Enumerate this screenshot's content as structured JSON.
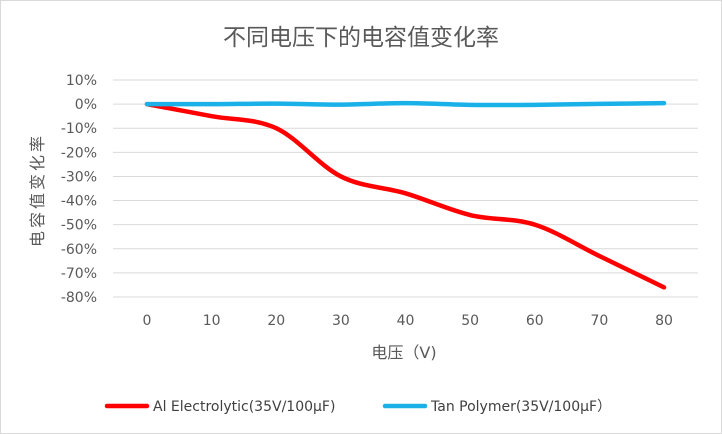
{
  "chart_data": {
    "type": "line",
    "title": "不同电压下的电容值变化率",
    "xlabel": "电压（V)",
    "ylabel": "电容值变化率",
    "x": [
      0,
      10,
      20,
      30,
      40,
      50,
      60,
      70,
      80
    ],
    "x_tick_labels": [
      "0",
      "10",
      "20",
      "30",
      "40",
      "50",
      "60",
      "70",
      "80"
    ],
    "ylim": [
      -80,
      10
    ],
    "y_ticks": [
      10,
      0,
      -10,
      -20,
      -30,
      -40,
      -50,
      -60,
      -70,
      -80
    ],
    "y_tick_labels": [
      "10%",
      "0%",
      "-10%",
      "-20%",
      "-30%",
      "-40%",
      "-50%",
      "-60%",
      "-70%",
      "-80%"
    ],
    "grid": true,
    "legend_position": "bottom",
    "series": [
      {
        "name": "Al Electrolytic(35V/100μF)",
        "color": "#ff0000",
        "values": [
          0,
          -5,
          -10,
          -30,
          -37,
          -46,
          -50,
          -63,
          -76
        ]
      },
      {
        "name": "Tan Polymer(35V/100μF）",
        "color": "#1ab0e8",
        "values": [
          0,
          0,
          0.2,
          -0.2,
          0.4,
          -0.3,
          -0.3,
          0.1,
          0.4
        ]
      }
    ]
  }
}
